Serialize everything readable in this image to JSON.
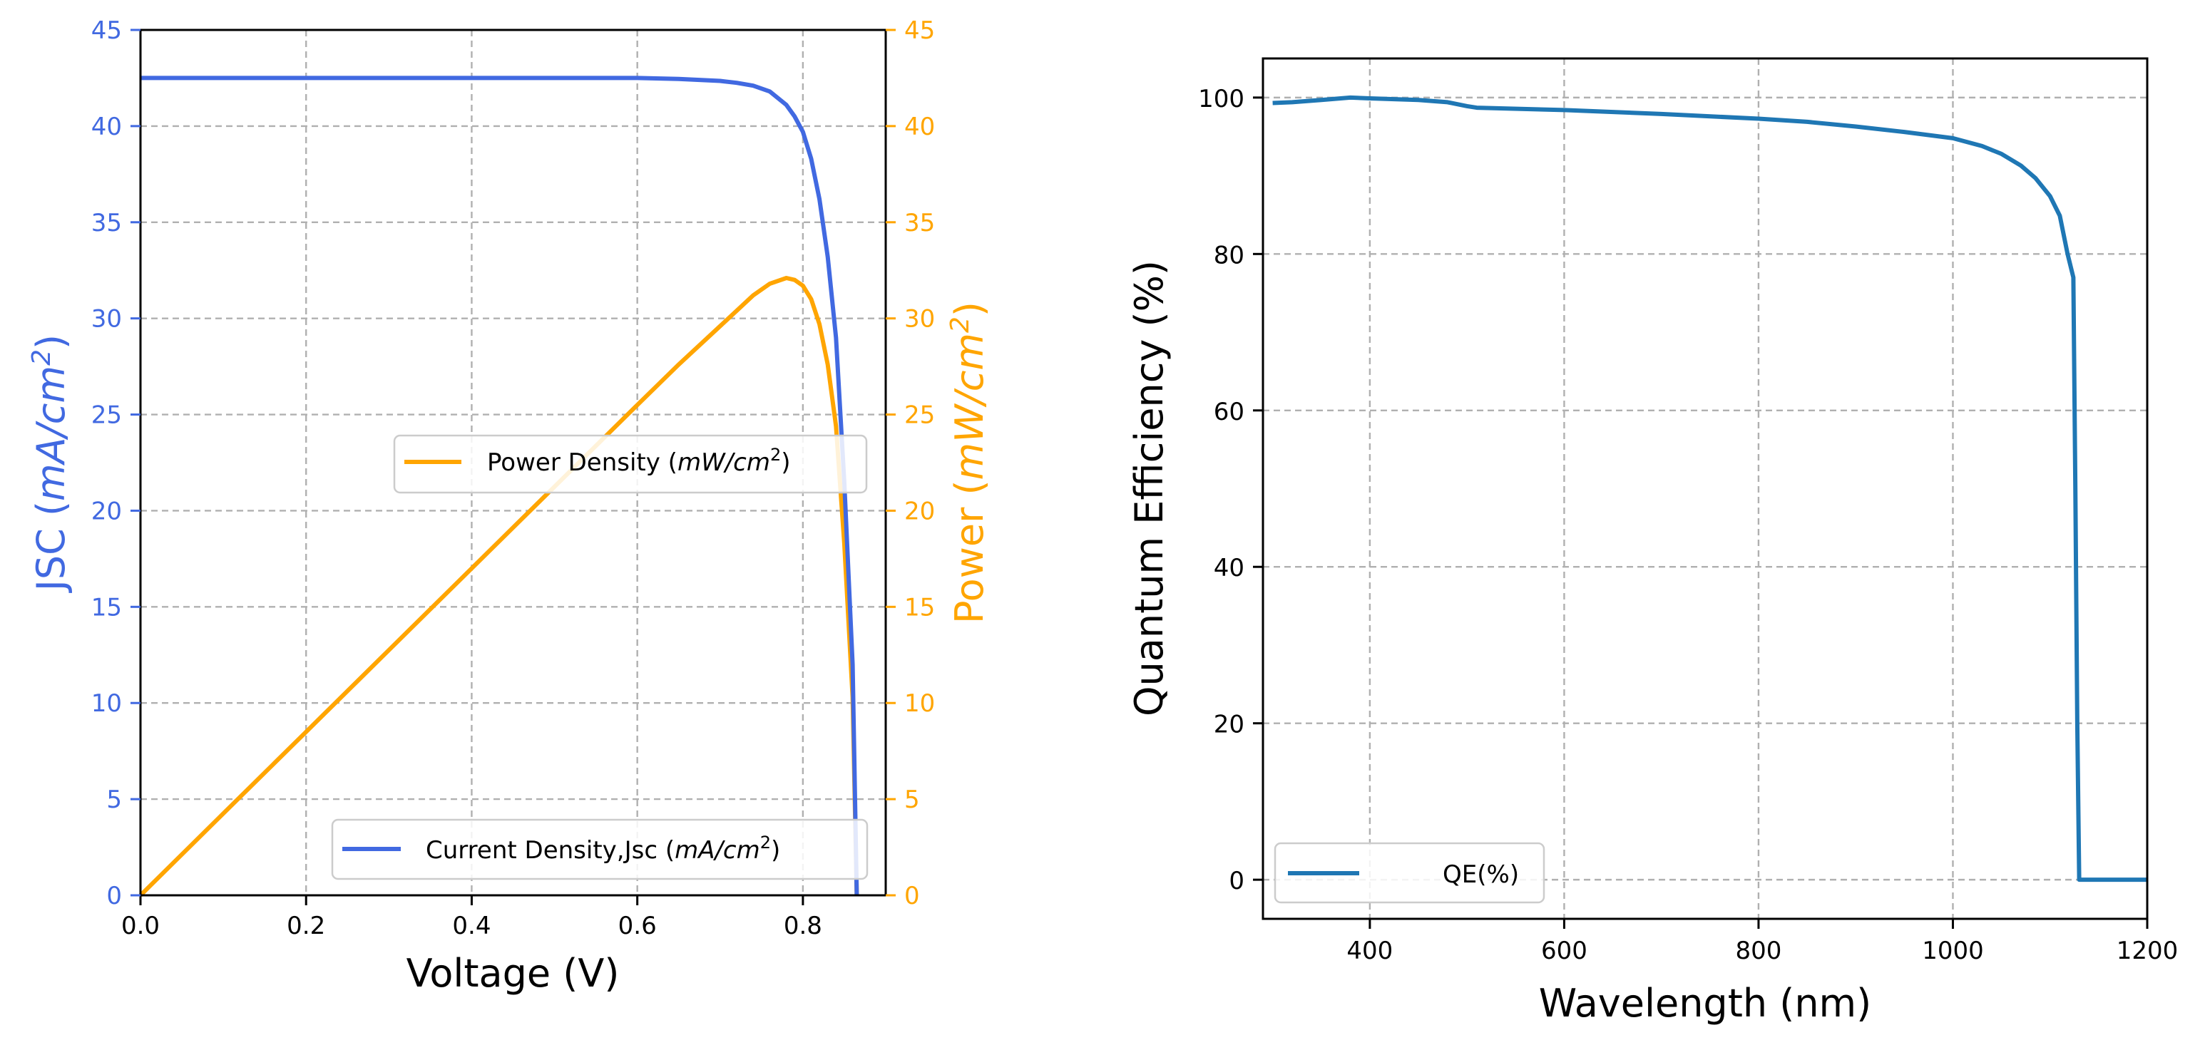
{
  "colors": {
    "jsc": "#4169e1",
    "power": "#ffa500",
    "qe": "#1f77b4"
  },
  "chart_data": [
    {
      "type": "line",
      "xlabel": "Voltage (V)",
      "ylabel_left": {
        "text": "JSC (",
        "italic": "mA/cm",
        "sup": "2",
        "close": ")"
      },
      "ylabel_right": {
        "text": "Power (",
        "italic": "mW/cm",
        "sup": "2",
        "close": ")"
      },
      "xlim": [
        0.0,
        0.9
      ],
      "ylim_left": [
        0,
        45
      ],
      "ylim_right": [
        0,
        45
      ],
      "x_ticks": [
        0.0,
        0.2,
        0.4,
        0.6,
        0.8
      ],
      "x_tick_labels": [
        "0.0",
        "0.2",
        "0.4",
        "0.6",
        "0.8"
      ],
      "y_ticks": [
        0,
        5,
        10,
        15,
        20,
        25,
        30,
        35,
        40,
        45
      ],
      "y_tick_labels": [
        "0",
        "5",
        "10",
        "15",
        "20",
        "25",
        "30",
        "35",
        "40",
        "45"
      ],
      "grid": true,
      "series": [
        {
          "name": "Current Density,Jsc",
          "legend_italic": "mA/cm",
          "legend_sup": "2",
          "legend_placement": "lower-right",
          "axis": "left",
          "x": [
            0.0,
            0.1,
            0.2,
            0.3,
            0.4,
            0.5,
            0.6,
            0.65,
            0.7,
            0.72,
            0.74,
            0.76,
            0.78,
            0.79,
            0.8,
            0.81,
            0.82,
            0.83,
            0.84,
            0.85,
            0.86,
            0.865
          ],
          "y": [
            42.5,
            42.5,
            42.5,
            42.5,
            42.5,
            42.5,
            42.5,
            42.45,
            42.35,
            42.25,
            42.1,
            41.8,
            41.1,
            40.5,
            39.7,
            38.3,
            36.2,
            33.2,
            29.0,
            21.5,
            12.0,
            0.0
          ]
        },
        {
          "name": "Power Density",
          "legend_italic": "mW/cm",
          "legend_sup": "2",
          "legend_placement": "center-right",
          "axis": "right",
          "x": [
            0.0,
            0.1,
            0.2,
            0.3,
            0.4,
            0.5,
            0.6,
            0.65,
            0.7,
            0.72,
            0.74,
            0.76,
            0.78,
            0.79,
            0.8,
            0.81,
            0.82,
            0.83,
            0.84,
            0.85,
            0.86,
            0.865
          ],
          "y": [
            0.0,
            4.25,
            8.5,
            12.75,
            17.0,
            21.25,
            25.5,
            27.6,
            29.6,
            30.4,
            31.2,
            31.8,
            32.1,
            32.0,
            31.7,
            31.0,
            29.7,
            27.6,
            24.4,
            18.3,
            10.3,
            0.0
          ]
        }
      ]
    },
    {
      "type": "line",
      "xlabel": "Wavelength (nm)",
      "ylabel": "Quantum Efficiency (%)",
      "xlim": [
        290,
        1200
      ],
      "ylim": [
        -5,
        105
      ],
      "x_ticks": [
        400,
        600,
        800,
        1000,
        1200
      ],
      "x_tick_labels": [
        "400",
        "600",
        "800",
        "1000",
        "1200"
      ],
      "y_ticks": [
        0,
        20,
        40,
        60,
        80,
        100
      ],
      "y_tick_labels": [
        "0",
        "20",
        "40",
        "60",
        "80",
        "100"
      ],
      "grid": true,
      "series": [
        {
          "name": "QE(%)",
          "legend_placement": "lower-left",
          "x": [
            300,
            320,
            350,
            380,
            400,
            450,
            480,
            500,
            510,
            600,
            700,
            800,
            850,
            900,
            950,
            1000,
            1030,
            1050,
            1070,
            1085,
            1100,
            1110,
            1118,
            1124,
            1126,
            1128,
            1130,
            1150,
            1200
          ],
          "y": [
            99.3,
            99.4,
            99.7,
            100.0,
            99.9,
            99.7,
            99.4,
            98.9,
            98.7,
            98.4,
            97.9,
            97.3,
            96.9,
            96.3,
            95.6,
            94.8,
            93.8,
            92.8,
            91.3,
            89.7,
            87.4,
            84.9,
            80.0,
            77.0,
            50.0,
            20.0,
            0.0,
            0.0,
            0.0
          ]
        }
      ]
    }
  ]
}
